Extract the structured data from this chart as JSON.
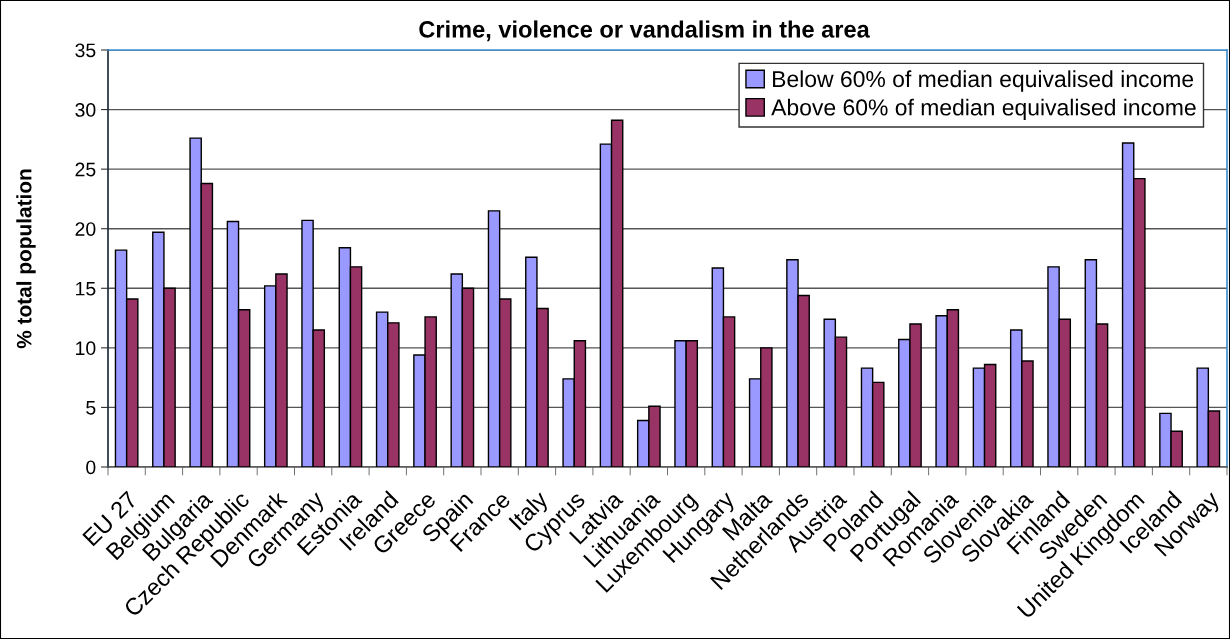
{
  "chart_data": {
    "type": "bar",
    "title": "Crime, violence or vandalism in the area",
    "ylabel": "% total population",
    "categories": [
      "EU 27",
      "Belgium",
      "Bulgaria",
      "Czech Republic",
      "Denmark",
      "Germany",
      "Estonia",
      "Ireland",
      "Greece",
      "Spain",
      "France",
      "Italy",
      "Cyprus",
      "Latvia",
      "Lithuania",
      "Luxembourg",
      "Hungary",
      "Malta",
      "Netherlands",
      "Austria",
      "Poland",
      "Portugal",
      "Romania",
      "Slovenia",
      "Slovakia",
      "Finland",
      "Sweden",
      "United Kingdom",
      "Iceland",
      "Norway"
    ],
    "series": [
      {
        "name": "Below 60% of median equivalised income",
        "color": "#9999ff",
        "values": [
          18.2,
          19.7,
          27.6,
          20.6,
          15.2,
          20.7,
          18.4,
          13.0,
          9.4,
          16.2,
          21.5,
          17.6,
          7.4,
          27.1,
          3.9,
          10.6,
          16.7,
          7.4,
          17.4,
          12.4,
          8.3,
          10.7,
          12.7,
          8.3,
          11.5,
          16.8,
          17.4,
          27.2,
          4.5,
          8.3
        ]
      },
      {
        "name": "Above 60% of median equivalised income",
        "color": "#993366",
        "values": [
          14.1,
          15.0,
          23.8,
          13.2,
          16.2,
          11.5,
          16.8,
          12.1,
          12.6,
          15.0,
          14.1,
          13.3,
          10.6,
          29.1,
          5.1,
          10.6,
          12.6,
          10.0,
          14.4,
          10.9,
          7.1,
          12.0,
          13.2,
          8.6,
          8.9,
          12.4,
          12.0,
          24.2,
          3.0,
          4.7
        ]
      }
    ],
    "ylim": [
      0,
      35
    ],
    "yticks": [
      0,
      5,
      10,
      15,
      20,
      25,
      30,
      35
    ],
    "grid": "y",
    "legend": "top right"
  }
}
